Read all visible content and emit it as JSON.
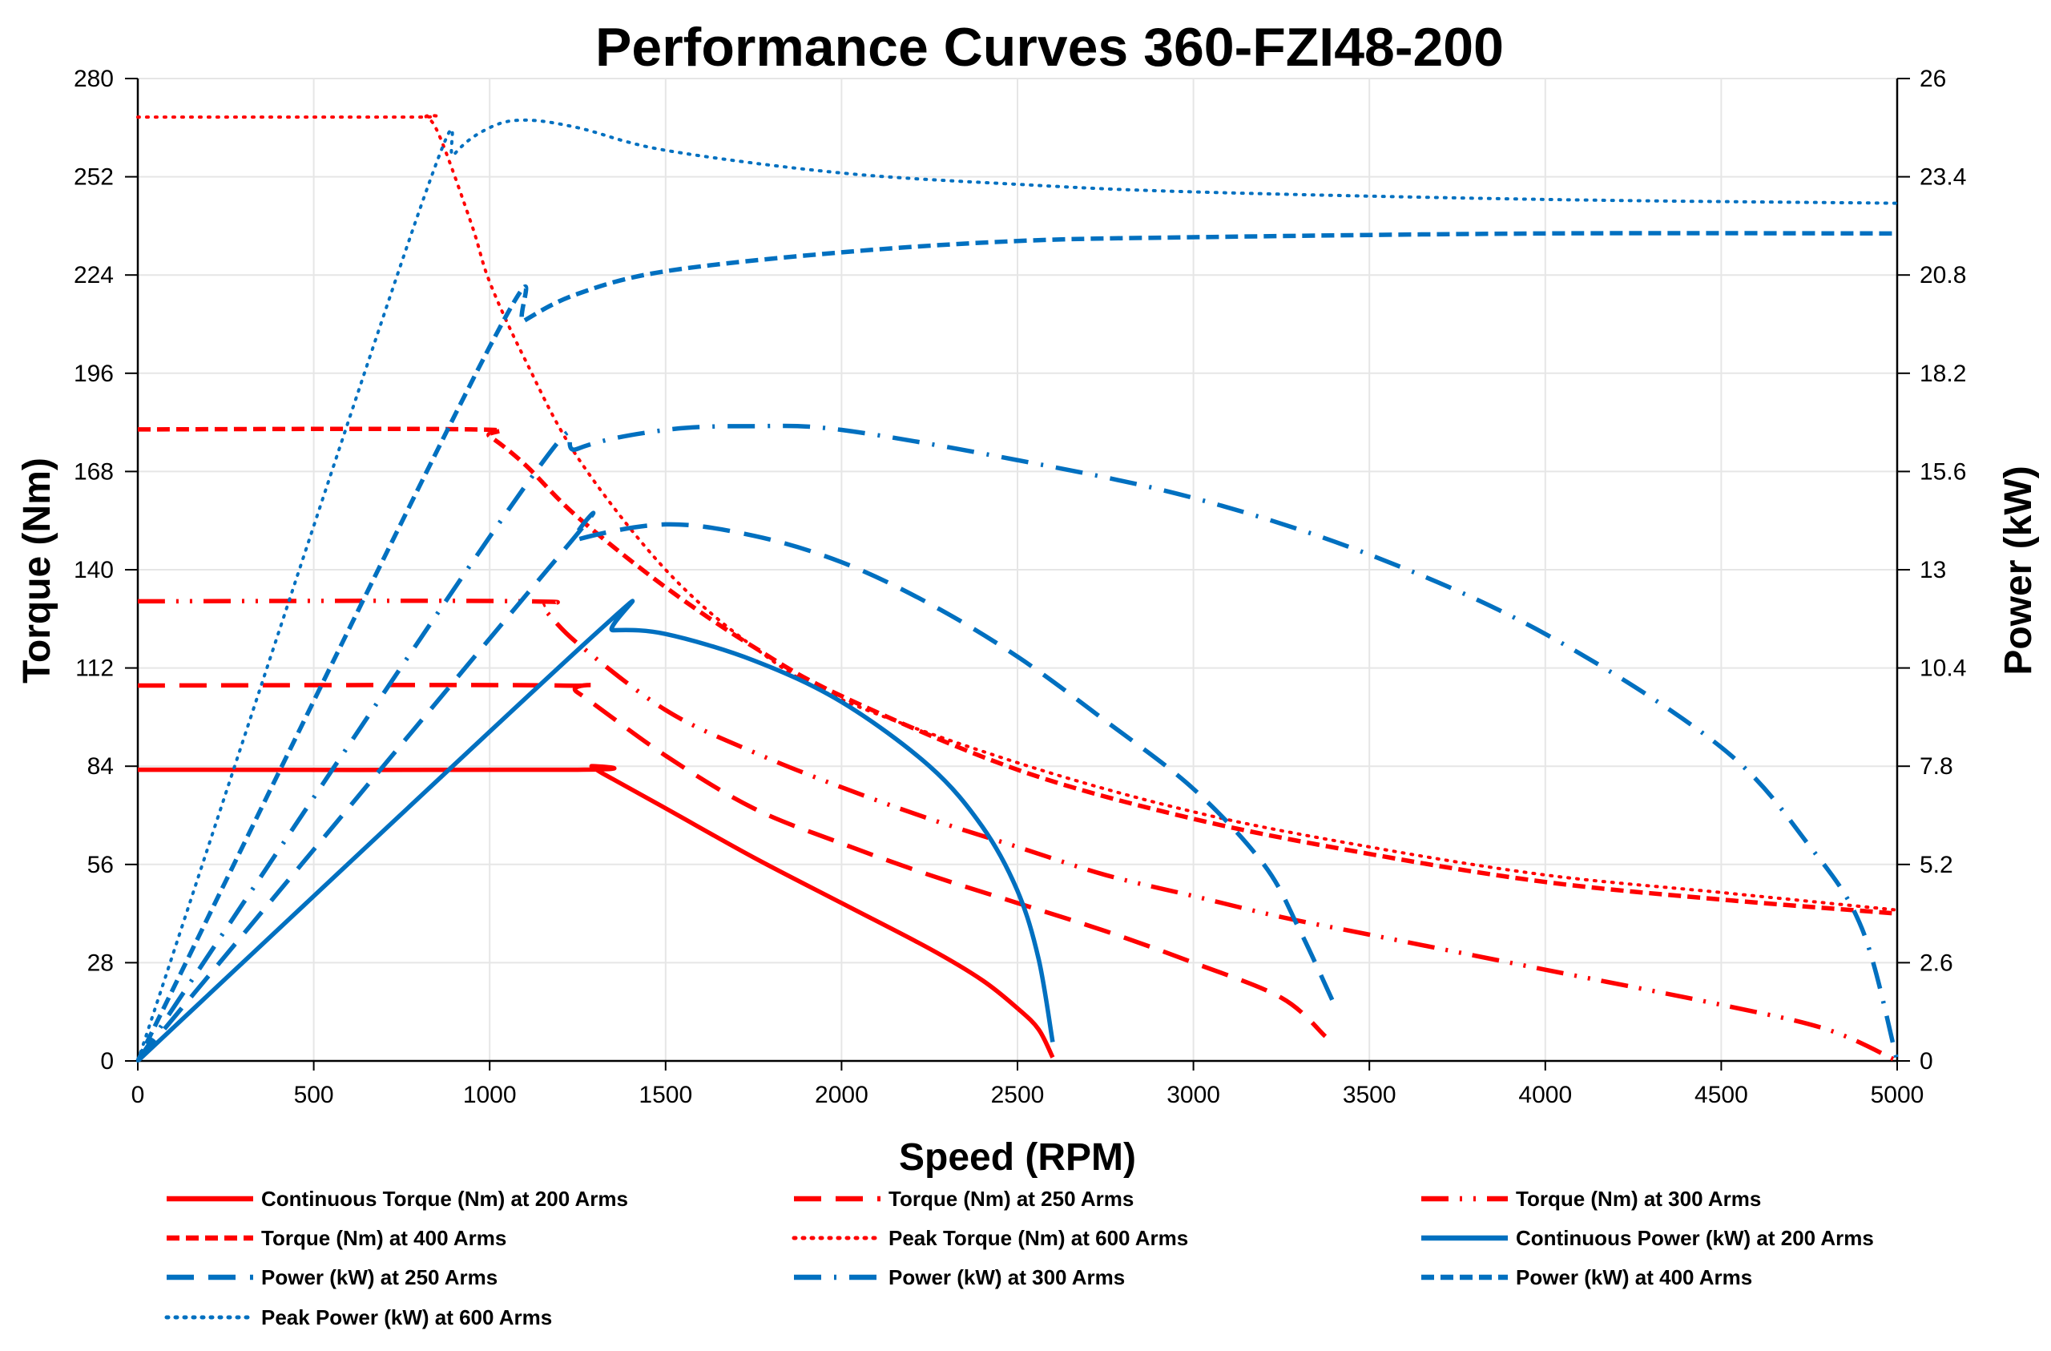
{
  "chart_data": {
    "type": "line",
    "title": "Performance Curves 360-FZI48-200",
    "xlabel": "Speed (RPM)",
    "ylabel": "Torque (Nm)",
    "y2label": "Power (kW)",
    "xlim": [
      0,
      5000
    ],
    "ylim": [
      0,
      280
    ],
    "y2lim": [
      0,
      26
    ],
    "xticks": [
      0,
      500,
      1000,
      1500,
      2000,
      2500,
      3000,
      3500,
      4000,
      4500,
      5000
    ],
    "yticks": [
      0,
      28,
      56,
      84,
      112,
      140,
      168,
      196,
      224,
      252,
      280
    ],
    "y2ticks": [
      "0",
      "2.6",
      "5.2",
      "7.8",
      "10.4",
      "13",
      "15.6",
      "18.2",
      "20.8",
      "23.4",
      "26"
    ],
    "grid": true,
    "legend_position": "bottom",
    "colors": {
      "torque": "#ff0000",
      "power": "#0070c0"
    },
    "series": [
      {
        "name": "Continuous Torque (Nm) at 200 Arms",
        "axis": "left",
        "color": "#ff0000",
        "style": "solid",
        "x": [
          0,
          1250,
          1290,
          1320,
          1500,
          1750,
          2000,
          2250,
          2400,
          2500,
          2560,
          2600
        ],
        "y": [
          83,
          83,
          84,
          82,
          72,
          58,
          45,
          32,
          23,
          15,
          9,
          1
        ]
      },
      {
        "name": "Torque (Nm) at 250 Arms",
        "axis": "left",
        "color": "#ff0000",
        "style": "long-dash",
        "x": [
          0,
          1200,
          1250,
          1500,
          1750,
          2000,
          2250,
          2500,
          2750,
          3000,
          3250,
          3375
        ],
        "y": [
          107,
          107,
          105,
          87,
          72,
          62,
          53,
          45,
          37,
          28,
          18,
          7
        ]
      },
      {
        "name": "Torque (Nm) at 300 Arms",
        "axis": "left",
        "color": "#ff0000",
        "style": "dash-dot-dot",
        "x": [
          0,
          1100,
          1150,
          1250,
          1500,
          1750,
          2000,
          2250,
          2500,
          2750,
          3000,
          3250,
          3500,
          4000,
          4500,
          4800,
          5000
        ],
        "y": [
          131,
          131,
          129,
          119,
          100,
          88,
          78,
          69,
          61,
          53,
          47,
          41,
          36,
          26,
          16,
          9,
          0
        ]
      },
      {
        "name": "Torque (Nm) at 400 Arms",
        "axis": "left",
        "color": "#ff0000",
        "style": "dash",
        "x": [
          0,
          950,
          1000,
          1100,
          1250,
          1500,
          1750,
          2000,
          2500,
          3000,
          3500,
          4000,
          4500,
          5000
        ],
        "y": [
          180,
          180,
          178,
          170,
          155,
          135,
          118,
          104,
          83,
          69,
          59,
          51,
          46,
          42
        ]
      },
      {
        "name": "Peak Torque (Nm) at 600 Arms",
        "axis": "left",
        "color": "#ff0000",
        "style": "dot",
        "x": [
          0,
          780,
          820,
          860,
          950,
          1000,
          1100,
          1250,
          1500,
          1750,
          2000,
          2500,
          3000,
          3500,
          4000,
          4500,
          5000
        ],
        "y": [
          269,
          269,
          269,
          263,
          238,
          222,
          200,
          172,
          140,
          118,
          103,
          85,
          71,
          61,
          53,
          48,
          43
        ]
      },
      {
        "name": "Continuous Power (kW) at 200 Arms",
        "axis": "right",
        "color": "#0070c0",
        "style": "solid",
        "x": [
          0,
          1300,
          1350,
          1500,
          1750,
          2000,
          2250,
          2400,
          2500,
          2560,
          2600
        ],
        "y": [
          0,
          11.3,
          11.4,
          11.3,
          10.6,
          9.5,
          7.8,
          6.2,
          4.5,
          2.7,
          0.5
        ]
      },
      {
        "name": "Power (kW) at 250 Arms",
        "axis": "right",
        "color": "#0070c0",
        "style": "long-dash",
        "x": [
          0,
          1200,
          1250,
          1500,
          1750,
          2000,
          2250,
          2500,
          2750,
          3000,
          3200,
          3300,
          3400
        ],
        "y": [
          0,
          13.4,
          13.8,
          14.2,
          13.9,
          13.2,
          12.1,
          10.7,
          9.0,
          7.2,
          5.2,
          3.5,
          1.5
        ]
      },
      {
        "name": "Power (kW) at 300 Arms",
        "axis": "right",
        "color": "#0070c0",
        "style": "dash-dot",
        "x": [
          0,
          1100,
          1250,
          1500,
          1750,
          2000,
          2500,
          3000,
          3500,
          4000,
          4500,
          4750,
          4900,
          5000
        ],
        "y": [
          0,
          15.2,
          16.2,
          16.7,
          16.8,
          16.7,
          15.9,
          14.9,
          13.4,
          11.3,
          8.3,
          5.7,
          3.5,
          0
        ]
      },
      {
        "name": "Power (kW) at 400 Arms",
        "axis": "right",
        "color": "#0070c0",
        "style": "dash",
        "x": [
          0,
          1000,
          1100,
          1250,
          1500,
          2000,
          2500,
          3000,
          4000,
          5000
        ],
        "y": [
          0,
          18.9,
          19.6,
          20.3,
          20.9,
          21.4,
          21.7,
          21.8,
          21.9,
          21.9
        ]
      },
      {
        "name": "Peak Power (kW) at 600 Arms",
        "axis": "right",
        "color": "#0070c0",
        "style": "dot",
        "x": [
          0,
          800,
          900,
          1000,
          1100,
          1250,
          1500,
          2000,
          2500,
          3000,
          4000,
          5000
        ],
        "y": [
          0,
          22.5,
          24.0,
          24.7,
          24.9,
          24.7,
          24.1,
          23.5,
          23.2,
          23.0,
          22.8,
          22.7
        ]
      }
    ]
  }
}
